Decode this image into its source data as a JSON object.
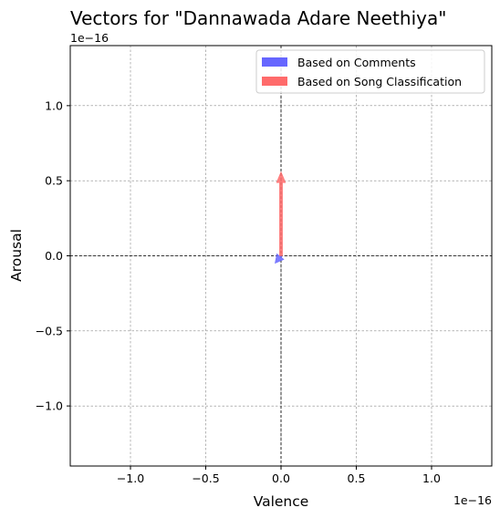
{
  "chart_data": {
    "type": "vector",
    "title": "Vectors for \"Dannawada Adare Neethiya\"",
    "xlabel": "Valence",
    "ylabel": "Arousal",
    "x_scale_label": "1e−16",
    "y_scale_label": "1e−16",
    "xlim": [
      -1.4,
      1.4
    ],
    "ylim": [
      -1.4,
      1.4
    ],
    "x_ticks": [
      {
        "value": -1.0,
        "label": "−1.0"
      },
      {
        "value": -0.5,
        "label": "−0.5"
      },
      {
        "value": 0.0,
        "label": "0.0"
      },
      {
        "value": 0.5,
        "label": "0.5"
      },
      {
        "value": 1.0,
        "label": "1.0"
      }
    ],
    "y_ticks": [
      {
        "value": -1.0,
        "label": "−1.0"
      },
      {
        "value": -0.5,
        "label": "−0.5"
      },
      {
        "value": 0.0,
        "label": "0.0"
      },
      {
        "value": 0.5,
        "label": "0.5"
      },
      {
        "value": 1.0,
        "label": "1.0"
      }
    ],
    "grid": true,
    "legend_position": "top-right",
    "series": [
      {
        "name": "Based on Comments",
        "color": "#6666ff",
        "x0": 0,
        "y0": 0,
        "dx": -0.04,
        "dy": -0.05
      },
      {
        "name": "Based on Song Classification",
        "color": "#ff6b6b",
        "x0": 0,
        "y0": 0,
        "dx": 0,
        "dy": 0.56
      }
    ]
  }
}
